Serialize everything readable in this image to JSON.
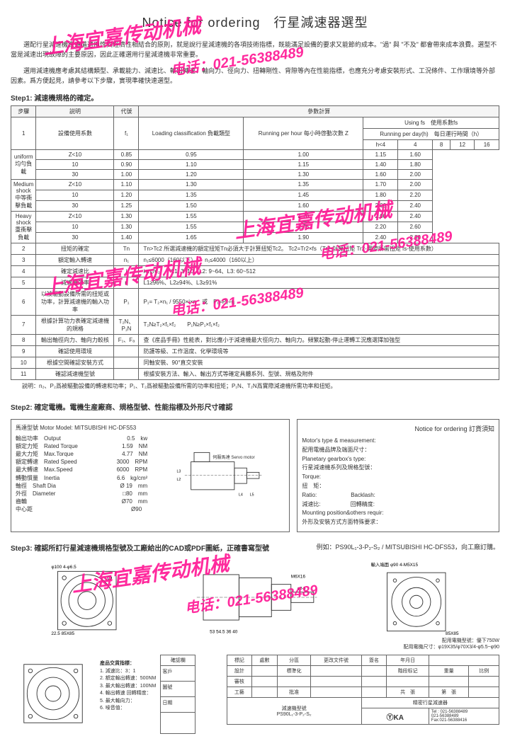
{
  "title": "Notice for ordering　行星減速器選型",
  "intro1": "選配行星減速機應遵循適用性與經濟性相結合的原則，就是說行星減速機的各項技術指標，既能滿足設備的要求又能節約成本。\"過\" 與 \"不及\" 都會帶來成本浪費。選型不當是減速出現故障的主要原因，因此正確選用行星減速機非常重要。",
  "intro2": "選用減速機應考慮其結構類型、承載能力、減速比、輸出轉速、軸向力、徑向力、扭轉剛性、背隙等內在性能指標，也應充分考慮安裝形式、工況條件、工作環境等外部因素。爲方便起見，請參考以下步驟，實現準確快速選型。",
  "step1_label": "Step1: 減速機規格的確定。",
  "table1": {
    "headers": {
      "step": "步驟",
      "desc": "説明",
      "code": "代號",
      "calc": "參數計算"
    },
    "loading": "Loading classification 負載類型",
    "running_hour": "Running per hour 每小時啓動次數 Z",
    "using_fs": "Using  fs　使用系數fs",
    "running_day": "Running per day(h)　每日運行時間（h）",
    "h_cols": [
      "h<4",
      "4<h<8",
      "8<h<12",
      "12<h<16",
      "16<h<24"
    ],
    "load_types": [
      {
        "name": "uniform 均勻負載",
        "rows": [
          {
            "z": "Z<10",
            "v": [
              "0.85",
              "0.95",
              "1.00",
              "1.15",
              "1.60"
            ]
          },
          {
            "z": "10<Z<30",
            "v": [
              "0.90",
              "1.10",
              "1.15",
              "1.40",
              "1.80"
            ]
          },
          {
            "z": "30<Z<100",
            "v": [
              "1.00",
              "1.20",
              "1.30",
              "1.60",
              "2.00"
            ]
          }
        ]
      },
      {
        "name": "Medium shock 中等衝擊負載",
        "rows": [
          {
            "z": "Z<10",
            "v": [
              "1.10",
              "1.30",
              "1.35",
              "1.70",
              "2.00"
            ]
          },
          {
            "z": "10<Z<30",
            "v": [
              "1.20",
              "1.35",
              "1.45",
              "1.80",
              "2.20"
            ]
          },
          {
            "z": "30<Z<100",
            "v": [
              "1.25",
              "1.50",
              "1.60",
              "2.00",
              "2.40"
            ]
          }
        ]
      },
      {
        "name": "Heavy shock 重衝擊負載",
        "rows": [
          {
            "z": "Z<10",
            "v": [
              "1.30",
              "1.55",
              "1.70",
              "2.00",
              "2.40"
            ]
          },
          {
            "z": "10<Z<30",
            "v": [
              "1.30",
              "1.55",
              "1.75",
              "2.20",
              "2.60"
            ]
          },
          {
            "z": "30<Z<100",
            "v": [
              "1.40",
              "1.65",
              "1.90",
              "2.40",
              "2.80"
            ]
          }
        ]
      }
    ],
    "row1_desc": "設備使用系數",
    "row1_code": "f₁",
    "rows_simple": [
      {
        "n": "2",
        "d": "扭矩的確定",
        "c": "Tn",
        "v": "Tn>Tc2  所選減速機的額定扭矩Tn必須大于計算扭矩Tc2。 Tc2=Tr2×fs（Tr2-計算扭矩 Tr2-實際所需扭矩 fs-使用系數）"
      },
      {
        "n": "3",
        "d": "額定輸入轉速",
        "c": "n₁",
        "v": "n₁≤6000（160以下）　　n₁≤4000（160以上）"
      },
      {
        "n": "4",
        "d": "確定減速比",
        "c": "i",
        "v": "i=n₁/n₂　　L1: 3~10、L2: 9~64、L3: 60~512"
      },
      {
        "n": "5",
        "d": "減速機效率",
        "c": "η",
        "v": "L1≥96%、L2≥94%、L3≥91%"
      },
      {
        "n": "6",
        "d": "以被驅動設備所需的扭矩或功率，計算減速機的輸入功率",
        "c": "P₁",
        "v": "P₁= T₂×n₁ / 9550×i×η　或　P₁=P₂÷η"
      },
      {
        "n": "7",
        "d": "根據計算功力表確定減速機的規格",
        "c": "T₂N、P₁N",
        "v": "T₂N≥T₂×f₁×f₂　　P₁N≥P₁×f₁×f₂"
      },
      {
        "n": "8",
        "d": "輸出軸徑向力、軸向力較核",
        "c": "F₁、Fₐ",
        "v": "查《産品手冊》性能表，對比應小于減速機最大徑向力、軸向力。頻繁起動-停止運轉工況應選擇加強型"
      },
      {
        "n": "9",
        "d": "確認使用環境",
        "c": "",
        "v": "防護等級、工作温度、化學環境等"
      },
      {
        "n": "10",
        "d": "根據空間確認安裝方式",
        "c": "",
        "v": "同軸安裝、90°直交安裝"
      },
      {
        "n": "11",
        "d": "確認減速機型號",
        "c": "",
        "v": "根據安裝方法、輸入、輸出方式等確定具體系列、型號、規格及附件"
      }
    ],
    "footer": "説明：n₂、P₂爲被驅動設備的轉速和功率；P₁、T₂爲被驅動設備所需的功率和扭矩；P₁N、T₂N爲實際減速機所需功率和扭矩。"
  },
  "step2_label": "Step2: 確定電機。電機生産廠商、規格型號、性能指標及外形尺寸確認",
  "motor": {
    "header": "馬達型號 Motor Model: MITSUBISHI HC-DFS53",
    "specs": [
      [
        "輸出功率",
        "Output",
        "0.5",
        "kw"
      ],
      [
        "額定力矩",
        "Rated Torque",
        "1.59",
        "NM"
      ],
      [
        "最大力矩",
        "Max.Torque",
        "4.77",
        "NM"
      ],
      [
        "額定轉速",
        "Rated Speed",
        "3000",
        "RPM"
      ],
      [
        "最大轉速",
        "Max.Speed",
        "6000",
        "RPM"
      ],
      [
        "轉動慣量",
        "Inertia",
        "6.6",
        "kg/cm²"
      ],
      [
        "軸徑",
        "Shaft Dia",
        "Ø 19",
        "mm"
      ],
      [
        "外徑",
        "Diameter",
        "□80",
        "mm"
      ],
      [
        "齒輪",
        "",
        "Ø70",
        "mm"
      ],
      [
        "中心距",
        "",
        "Ø90",
        ""
      ]
    ],
    "servo_label": "伺服馬達 Servo motor"
  },
  "rightbox": {
    "header": "Notice for ordering 訂貨須知",
    "lines": [
      "Motor's type & measurement:",
      "配用電機品牌及端面尺寸：",
      "Planetary gearbox's type:",
      "行星減速機系列及規格型號：",
      "Torque:",
      "扭　矩：",
      "Ratio:　　　　　　Backlash:",
      "減速比:　　　　　 回轉精度:",
      "Mounting position&others requir:",
      "外形及安裝方式方面特殊要求："
    ]
  },
  "step3_label": "Step3: 確認所訂行星減速機規格型號及工廠給出的CAD或PDF圖紙，正確書寫型號",
  "step3_example": "例如：PS90L₁-3-P₂-S₂ / MITSUBISHI  HC-DFS53，向工廠訂購。",
  "dwg_notes": {
    "d1": "φ100  4-φ6.5",
    "d2": "22.5  85X85",
    "d3": "53  54.5  36  40",
    "d4": "M6X16",
    "d5": "φ8-5",
    "d6": "輸入端面 φ90  4-M5X15",
    "d7": "配用電機型號：優下750W",
    "d8": "配用電機尺寸：φ19X35/φ70X3/4-φ5.5~φ90",
    "d9": "85X85"
  },
  "bl_txt": {
    "h": "産品交貨指標：",
    "lines": [
      "1. 減速比：3：1",
      "2. 額定輸出轉速：500NM",
      "3. 最大輸出轉速：100NM",
      "4. 輸出轉速 回轉精度：",
      "5. 最大軸向力：",
      "6. 噪音值："
    ]
  },
  "nameplate": {
    "top": [
      "標記",
      "處數",
      "分區",
      "更改文件號",
      "簽名",
      "年月日"
    ],
    "mid": [
      "設計",
      "",
      "標準化",
      "",
      "",
      "階段标记",
      "重量",
      "比例"
    ],
    "row2": [
      "審核",
      "",
      "",
      "",
      "",
      "",
      "",
      ""
    ],
    "row3": [
      "工藝",
      "",
      "批准",
      "",
      "",
      "共　張",
      "第　張",
      ""
    ],
    "model_label": "減速機型號",
    "model": "PS90L₁-3-P₂-S₂",
    "prod": "精密行星減速器",
    "brand": "ⓎKA",
    "tel": "Tel : 021-56388489",
    "tel2": "021-56388489",
    "fax": "Fax:021-56388416",
    "side": [
      "客戶",
      "圖號",
      "日期"
    ]
  },
  "watermark": {
    "company": "上海宜嘉传动机械",
    "phone": "电话：021-56388489"
  }
}
